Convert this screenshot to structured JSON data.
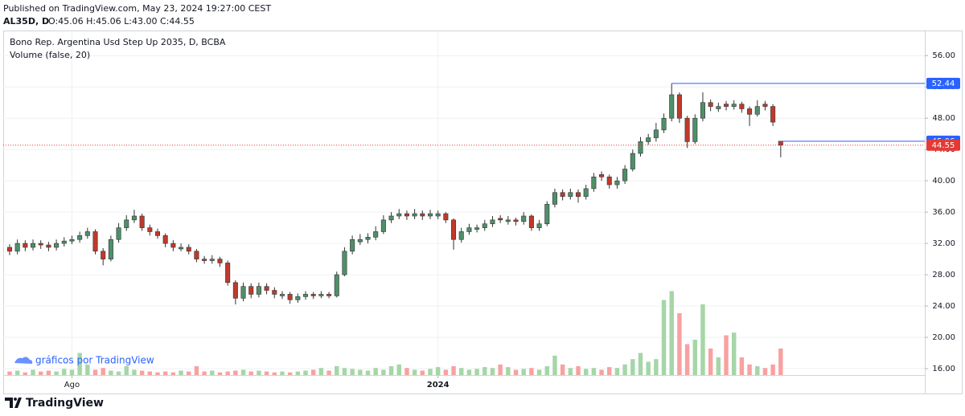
{
  "header": {
    "published": "Published on TradingView.com, May 23, 2024 19:27:00 CEST",
    "symbol": "AL35D, D",
    "ohlc": "O:45.06 H:45.06 L:43.00 C:44.55"
  },
  "watermark": "gráficos por TradingView",
  "footer": "TradingView",
  "chart_data": {
    "type": "candlestick",
    "title": "Bono Rep. Argentina Usd Step Up 2035, D, BCBA",
    "subtitle": "Volume (false, 20)",
    "open": [
      31.5,
      31,
      32,
      31.5,
      32,
      31.8,
      31.5,
      32,
      32.3,
      32.5,
      33,
      33.5,
      31,
      30,
      32.5,
      34,
      35,
      35.5,
      34,
      33.5,
      33,
      32,
      31.3,
      31.5,
      31,
      30,
      29.8,
      30,
      29.5,
      27,
      25,
      26.5,
      25.5,
      26.5,
      26,
      25.3,
      25.5,
      24.8,
      25.2,
      25.5,
      25.3,
      25.5,
      25.3,
      28,
      31,
      32.2,
      32.5,
      32.8,
      33.5,
      35,
      35.5,
      35.8,
      35.5,
      35.8,
      35.5,
      35.5,
      35.8,
      35,
      32.5,
      33.5,
      33.8,
      34,
      34.5,
      35.2,
      34.8,
      35,
      34.8,
      35.5,
      34,
      34.5,
      37,
      38.5,
      38,
      38.5,
      38,
      39,
      40.8,
      40.5,
      39.5,
      40,
      41.5,
      43.5,
      45,
      45.5,
      46.5,
      48,
      51,
      48,
      45,
      48,
      50,
      49.2,
      49.8,
      49.5,
      49.8,
      49.2,
      48.5,
      49.8,
      49.5,
      45.06
    ],
    "high": [
      31.9,
      32.5,
      32.4,
      32.5,
      32.4,
      32.2,
      32.5,
      32.8,
      33,
      33.5,
      34,
      33.8,
      31.4,
      33,
      34.6,
      35.6,
      36.3,
      35.8,
      34.4,
      33.9,
      33.3,
      32.4,
      32,
      31.9,
      31.3,
      30.4,
      30.5,
      30.3,
      29.8,
      27.3,
      27,
      26.9,
      27,
      26.9,
      26.4,
      25.9,
      25.8,
      25.6,
      25.9,
      25.8,
      25.9,
      25.8,
      28.4,
      31.5,
      33,
      33.2,
      33.3,
      34.2,
      35.6,
      36,
      36.4,
      36.2,
      36.4,
      36.2,
      36.3,
      36.2,
      36,
      35.2,
      34,
      34.5,
      34.4,
      35,
      35.5,
      35.6,
      35.5,
      35.3,
      36,
      35.7,
      35,
      37.4,
      39,
      38.9,
      39,
      38.9,
      39.5,
      41,
      41.2,
      40.8,
      40.5,
      42,
      44,
      45.6,
      46,
      47.4,
      48.6,
      52.44,
      51.3,
      48.3,
      48.5,
      51.3,
      50.4,
      50,
      50.2,
      50.3,
      50.1,
      49.5,
      50.3,
      50.2,
      49.8,
      45.06
    ],
    "low": [
      30.5,
      30.6,
      31,
      31.1,
      31.3,
      31,
      31.1,
      31.6,
      31.9,
      32.1,
      32.6,
      30.6,
      29.2,
      29.7,
      32.1,
      33.6,
      34.6,
      33.6,
      33,
      32.6,
      31.5,
      31,
      31,
      30.6,
      29.6,
      29.4,
      29.4,
      29,
      26.6,
      24.2,
      24.6,
      25,
      25.1,
      25.5,
      25,
      24.9,
      24.3,
      24.4,
      24.8,
      24.9,
      25,
      25,
      25.1,
      27.8,
      30.6,
      31.8,
      32,
      32.4,
      33.2,
      34.6,
      35.1,
      35,
      35.1,
      35,
      35.1,
      35.1,
      34.6,
      31.2,
      32.1,
      33.1,
      33.4,
      33.6,
      34.1,
      34.6,
      34.4,
      34.3,
      34.4,
      33.6,
      33.6,
      34.2,
      36.6,
      37.5,
      37.6,
      37.2,
      37.6,
      38.6,
      40,
      39,
      39,
      39.6,
      41.2,
      43.1,
      44.6,
      45,
      46.1,
      47.6,
      47.4,
      44.2,
      44.7,
      47.6,
      48.9,
      48.8,
      49,
      49.1,
      48.7,
      47,
      48.2,
      49,
      47,
      43
    ],
    "close": [
      31,
      32,
      31.5,
      32,
      31.8,
      31.5,
      32,
      32.3,
      32.5,
      33,
      33.5,
      31,
      30,
      32.5,
      34,
      35,
      35.5,
      34,
      33.5,
      33,
      32,
      31.5,
      31.5,
      31,
      30,
      29.8,
      30,
      29.5,
      27,
      25,
      26.5,
      25.5,
      26.5,
      26,
      25.5,
      25.5,
      24.8,
      25.2,
      25.5,
      25.3,
      25.5,
      25.3,
      28,
      31,
      32.5,
      32.5,
      32.8,
      33.5,
      35,
      35.5,
      35.8,
      35.5,
      35.8,
      35.5,
      35.8,
      35.8,
      35,
      32.5,
      33.5,
      34,
      34,
      34.5,
      35,
      35,
      35,
      34.8,
      35.5,
      34,
      34.5,
      37,
      38.5,
      38,
      38.5,
      38,
      39,
      40.5,
      40.5,
      39.5,
      40,
      41.5,
      43.5,
      45,
      45.5,
      46.5,
      48,
      51,
      48,
      45,
      48,
      50,
      49.5,
      49.5,
      49.5,
      49.8,
      49.2,
      48.5,
      49.5,
      49.5,
      47.5,
      44.55
    ],
    "volume": [
      4,
      5,
      3,
      6,
      4,
      5,
      4,
      7,
      6,
      25,
      12,
      6,
      8,
      5,
      4,
      10,
      6,
      5,
      4,
      3,
      4,
      3,
      5,
      4,
      10,
      4,
      5,
      3,
      4,
      5,
      6,
      4,
      5,
      4,
      3,
      4,
      3,
      4,
      5,
      6,
      8,
      5,
      10,
      8,
      7,
      6,
      5,
      8,
      6,
      10,
      12,
      8,
      6,
      5,
      7,
      9,
      6,
      10,
      8,
      6,
      7,
      9,
      8,
      12,
      9,
      6,
      7,
      8,
      6,
      10,
      22,
      12,
      8,
      10,
      7,
      8,
      6,
      9,
      8,
      12,
      18,
      25,
      15,
      18,
      85,
      95,
      70,
      35,
      40,
      80,
      30,
      20,
      45,
      48,
      20,
      12,
      10,
      8,
      12,
      30
    ],
    "volume_lim": [
      0,
      100
    ],
    "colors": {
      "up": "#4f8f6a",
      "down": "#c0392b",
      "volume_up": "#a5d6a7",
      "volume_down": "#f8a1a1",
      "last": "#e53935"
    },
    "xlim": [
      -0.823,
      117.5
    ],
    "xticks": [
      {
        "value": 8,
        "label": "Ago"
      },
      {
        "value": 55,
        "label": "2024"
      }
    ],
    "ylim": [
      15.18,
      59
    ],
    "yticks": [
      {
        "value": 16,
        "label": "16.00"
      },
      {
        "value": 20,
        "label": "20.00"
      },
      {
        "value": 24,
        "label": "24.00"
      },
      {
        "value": 28,
        "label": "28.00"
      },
      {
        "value": 32,
        "label": "32.00"
      },
      {
        "value": 36,
        "label": "36.00"
      },
      {
        "value": 40,
        "label": "40.00"
      },
      {
        "value": 44,
        "label": "44.00"
      },
      {
        "value": 48,
        "label": "48.00"
      },
      {
        "value": 52,
        "label": "52.00"
      },
      {
        "value": 56,
        "label": "56.00"
      }
    ],
    "hlines": [
      {
        "value": 45.06,
        "color": "#2962ff"
      },
      {
        "value": 52.44,
        "color": "#2962ff"
      }
    ],
    "grid": true
  }
}
